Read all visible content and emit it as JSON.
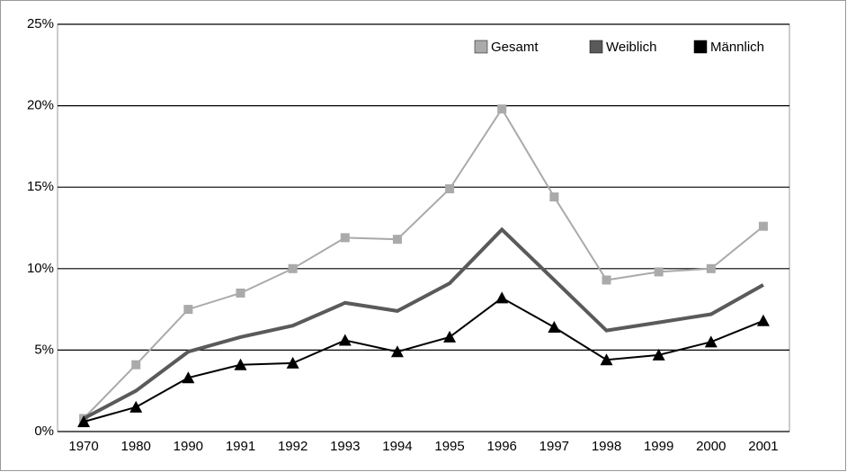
{
  "chart_data": {
    "type": "line",
    "categories": [
      "1970",
      "1980",
      "1990",
      "1991",
      "1992",
      "1993",
      "1994",
      "1995",
      "1996",
      "1997",
      "1998",
      "1999",
      "2000",
      "2001"
    ],
    "series": [
      {
        "name": "Gesamt",
        "color": "#aaaaaa",
        "marker": "square",
        "values": [
          0.8,
          4.1,
          7.5,
          8.5,
          10.0,
          11.9,
          11.8,
          14.9,
          19.8,
          14.4,
          9.3,
          9.8,
          10.0,
          12.6
        ]
      },
      {
        "name": "Weiblich",
        "color": "#5a5a5a",
        "values": [
          0.8,
          2.5,
          4.9,
          5.8,
          6.5,
          7.9,
          7.4,
          9.1,
          12.4,
          9.3,
          6.2,
          6.7,
          7.2,
          9.0
        ]
      },
      {
        "name": "Männlich",
        "color": "#000000",
        "marker": "triangle",
        "values": [
          0.6,
          1.5,
          3.3,
          4.1,
          4.2,
          5.6,
          4.9,
          5.8,
          8.2,
          6.4,
          4.4,
          4.7,
          5.5,
          6.8
        ]
      }
    ],
    "ylim": [
      0,
      25
    ],
    "yticks": [
      {
        "value": 0,
        "label": "0%"
      },
      {
        "value": 5,
        "label": "5%"
      },
      {
        "value": 10,
        "label": "10%"
      },
      {
        "value": 15,
        "label": "15%"
      },
      {
        "value": 20,
        "label": "20%"
      },
      {
        "value": 25,
        "label": "25%"
      }
    ],
    "grid": true,
    "legend": "top-right"
  }
}
